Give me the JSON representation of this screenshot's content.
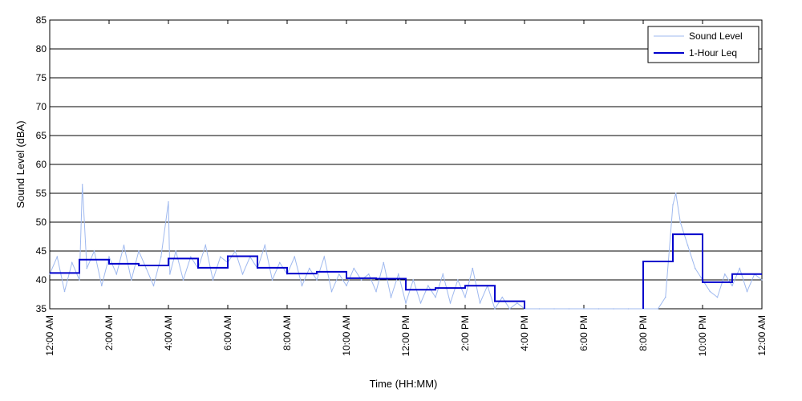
{
  "chart_data": {
    "type": "line",
    "title": "",
    "xlabel": "Time (HH:MM)",
    "ylabel": "Sound Level (dBA)",
    "xlim": [
      0,
      24
    ],
    "ylim": [
      35,
      85
    ],
    "grid": {
      "y": true,
      "x": false
    },
    "legend_position": "top-right",
    "x_tick_labels": [
      "12:00 AM",
      "2:00 AM",
      "4:00 AM",
      "6:00 AM",
      "8:00 AM",
      "10:00 AM",
      "12:00 PM",
      "2:00 PM",
      "4:00 PM",
      "6:00 PM",
      "8:00 PM",
      "10:00 PM",
      "12:00 AM"
    ],
    "x_tick_hours": [
      0,
      2,
      4,
      6,
      8,
      10,
      12,
      14,
      16,
      18,
      20,
      22,
      24
    ],
    "y_ticks": [
      35,
      40,
      45,
      50,
      55,
      60,
      65,
      70,
      75,
      80,
      85
    ],
    "series": [
      {
        "name": "Sound Level",
        "color": "#9fb9ef",
        "x": [
          0,
          0.25,
          0.5,
          0.75,
          1,
          1.1,
          1.25,
          1.5,
          1.75,
          2,
          2.25,
          2.5,
          2.75,
          3,
          3.25,
          3.5,
          3.75,
          4,
          4.05,
          4.25,
          4.5,
          4.75,
          5,
          5.25,
          5.5,
          5.75,
          6,
          6.25,
          6.5,
          6.75,
          7,
          7.25,
          7.5,
          7.75,
          8,
          8.25,
          8.5,
          8.75,
          9,
          9.25,
          9.5,
          9.75,
          10,
          10.25,
          10.5,
          10.75,
          11,
          11.25,
          11.5,
          11.75,
          12,
          12.25,
          12.5,
          12.75,
          13,
          13.25,
          13.5,
          13.75,
          14,
          14.25,
          14.5,
          14.75,
          15,
          15.25,
          15.5,
          15.75,
          16,
          16.5,
          17,
          17.5,
          18,
          18.5,
          19,
          19.5,
          20,
          20.5,
          20.75,
          21,
          21.1,
          21.25,
          21.5,
          21.75,
          22,
          22.25,
          22.5,
          22.75,
          23,
          23.25,
          23.5,
          23.75,
          24
        ],
        "y": [
          41,
          44,
          38,
          43,
          40,
          56.5,
          42,
          45,
          39,
          44,
          41,
          46,
          40,
          45,
          42,
          39,
          44,
          53.5,
          41,
          45,
          40,
          44,
          42,
          46,
          40,
          44,
          43,
          45,
          41,
          44,
          42,
          46,
          40,
          43,
          41,
          44,
          39,
          42,
          40,
          44,
          38,
          41,
          39,
          42,
          40,
          41,
          38,
          43,
          37,
          41,
          36,
          40,
          36,
          39,
          37,
          41,
          36,
          40,
          37,
          42,
          36,
          39,
          35,
          37,
          35,
          36,
          35,
          35,
          35,
          35,
          35,
          35,
          35,
          35,
          35,
          35,
          37,
          53,
          55,
          50,
          46,
          42,
          40,
          38,
          37,
          41,
          39,
          42,
          38,
          41,
          40
        ]
      },
      {
        "name": "1-Hour Leq",
        "color": "#0000cc",
        "step": true,
        "segments": [
          {
            "start": 0,
            "end": 1,
            "value": 41.2
          },
          {
            "start": 1,
            "end": 2,
            "value": 43.5
          },
          {
            "start": 2,
            "end": 3,
            "value": 42.8
          },
          {
            "start": 3,
            "end": 4,
            "value": 42.5
          },
          {
            "start": 4,
            "end": 5,
            "value": 43.7
          },
          {
            "start": 5,
            "end": 6,
            "value": 42.1
          },
          {
            "start": 6,
            "end": 7,
            "value": 44.1
          },
          {
            "start": 7,
            "end": 8,
            "value": 42.1
          },
          {
            "start": 8,
            "end": 9,
            "value": 41.1
          },
          {
            "start": 9,
            "end": 10,
            "value": 41.4
          },
          {
            "start": 10,
            "end": 11,
            "value": 40.3
          },
          {
            "start": 11,
            "end": 12,
            "value": 40.2
          },
          {
            "start": 12,
            "end": 13,
            "value": 38.3
          },
          {
            "start": 13,
            "end": 14,
            "value": 38.6
          },
          {
            "start": 14,
            "end": 15,
            "value": 39.0
          },
          {
            "start": 15,
            "end": 16,
            "value": 36.3
          },
          {
            "start": 20,
            "end": 21,
            "value": 43.2
          },
          {
            "start": 21,
            "end": 22,
            "value": 47.9
          },
          {
            "start": 22,
            "end": 23,
            "value": 39.6
          },
          {
            "start": 23,
            "end": 24,
            "value": 41.0
          }
        ]
      }
    ]
  }
}
